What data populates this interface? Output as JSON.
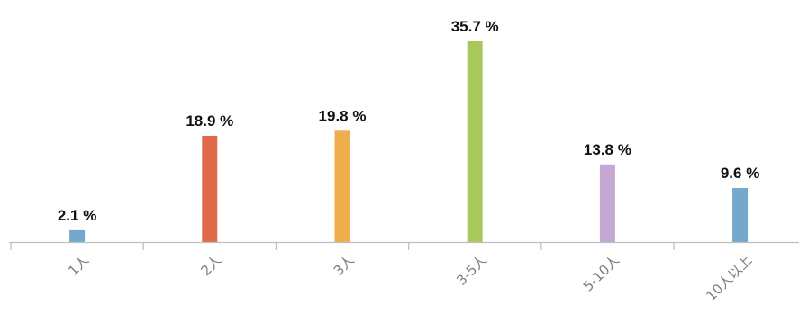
{
  "chart_data": {
    "type": "bar",
    "title": "",
    "xlabel": "",
    "ylabel": "",
    "categories": [
      "1人",
      "2人",
      "3人",
      "3-5人",
      "5-10人",
      "10人以上"
    ],
    "values": [
      2.1,
      18.9,
      19.8,
      35.7,
      13.8,
      9.6
    ],
    "value_labels": [
      "2.1 %",
      "18.9 %",
      "19.8 %",
      "35.7 %",
      "13.8 %",
      "9.6 %"
    ],
    "colors": [
      "#75a9cb",
      "#e06b4a",
      "#f0ad4e",
      "#a9c85a",
      "#c4a7d2",
      "#75a9cb"
    ],
    "ylim": [
      0,
      35.7
    ],
    "grid": false,
    "legend": "none",
    "value_unit": "%"
  }
}
